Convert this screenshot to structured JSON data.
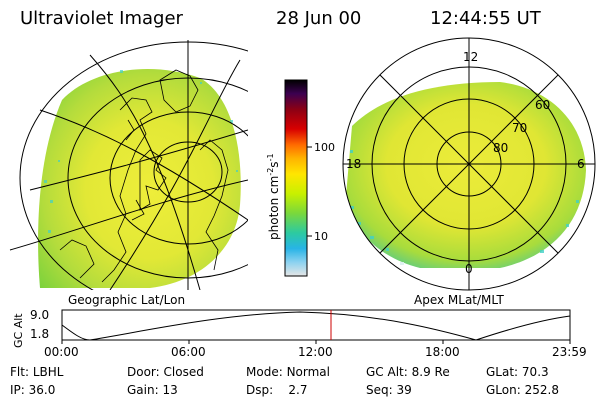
{
  "header": {
    "title": "Ultraviolet Imager",
    "date": "28 Jun 00",
    "time": "12:44:55 UT"
  },
  "left_panel": {
    "label": "Geographic Lat/Lon"
  },
  "right_panel": {
    "label": "Apex MLat/MLT",
    "mlt_labels": {
      "top": "12",
      "bottom": "0",
      "left": "18",
      "right": "6"
    },
    "lat_labels": [
      "60",
      "70",
      "80"
    ]
  },
  "colorbar": {
    "unit_label": "photon cm",
    "unit_exp1": "-2",
    "unit_s": "s",
    "unit_exp2": "-1",
    "ticks": [
      "100",
      "10"
    ]
  },
  "timeline": {
    "axis_label": "GC Alt",
    "y_ticks": [
      "9.0",
      "1.8"
    ],
    "x_ticks": [
      "00:00",
      "06:00",
      "12:00",
      "18:00",
      "23:59"
    ],
    "marker_time": "12:44:55",
    "marker_color": "#cc0000"
  },
  "footer": {
    "row1": [
      {
        "key": "Flt:",
        "value": "LBHL"
      },
      {
        "key": "Door:",
        "value": "Closed"
      },
      {
        "key": "Mode:",
        "value": "Normal"
      },
      {
        "key": "GC Alt:",
        "value": "8.9 Re"
      },
      {
        "key": "GLat:",
        "value": "70.3"
      }
    ],
    "row2": [
      {
        "key": "IP:",
        "value": "36.0"
      },
      {
        "key": "Gain:",
        "value": "13"
      },
      {
        "key": "Dsp:",
        "value": "2.7"
      },
      {
        "key": "Seq:",
        "value": "39"
      },
      {
        "key": "GLon:",
        "value": "252.8"
      }
    ]
  },
  "colors": {
    "aurora_yellow": "#e8e832",
    "aurora_green": "#a8dc3a",
    "aurora_cyan": "#40d0c8",
    "colorbar": [
      "#000000",
      "#3c0050",
      "#8c0014",
      "#d80000",
      "#ff6a00",
      "#ffb400",
      "#ffe600",
      "#c8f000",
      "#7ad83c",
      "#2ccaa0",
      "#28b4e6",
      "#8cd2f0",
      "#dcdcdc"
    ]
  }
}
